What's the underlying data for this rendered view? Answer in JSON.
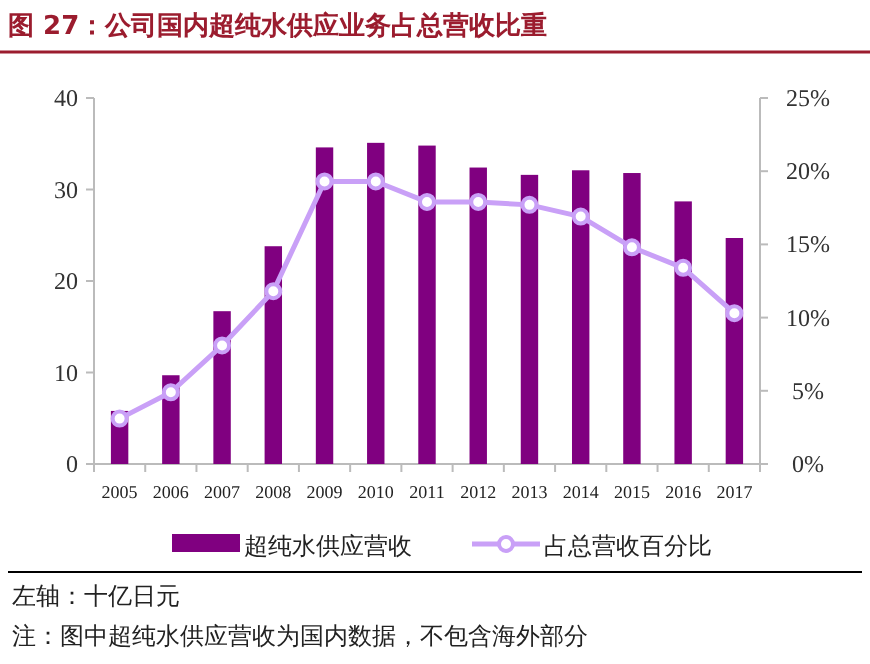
{
  "chart_data": {
    "type": "bar",
    "title": "图 27：公司国内超纯水供应业务占总营收比重",
    "categories": [
      "2005",
      "2006",
      "2007",
      "2008",
      "2009",
      "2010",
      "2011",
      "2012",
      "2013",
      "2014",
      "2015",
      "2016",
      "2017"
    ],
    "series": [
      {
        "name": "超纯水供应营收",
        "color": "#800080",
        "values": [
          5.8,
          9.7,
          16.7,
          23.8,
          34.6,
          35.1,
          34.8,
          32.4,
          31.6,
          32.1,
          31.8,
          28.7,
          24.7
        ]
      },
      {
        "name": "占总营收百分比",
        "type": "line",
        "axis": "y2",
        "color": "#c9a0f7",
        "marker": "circle",
        "values": [
          3.1,
          4.9,
          8.1,
          11.8,
          19.3,
          19.3,
          17.9,
          17.9,
          17.7,
          16.9,
          14.8,
          13.4,
          10.3
        ]
      }
    ],
    "ylim": [
      0,
      40
    ],
    "yticks": [
      0,
      10,
      20,
      30,
      40
    ],
    "y2lim": [
      0,
      25
    ],
    "y2ticks": [
      {
        "value": 0,
        "label": "0%"
      },
      {
        "value": 5,
        "label": "5%"
      },
      {
        "value": 10,
        "label": "10%"
      },
      {
        "value": 15,
        "label": "15%"
      },
      {
        "value": 20,
        "label": "20%"
      },
      {
        "value": 25,
        "label": "25%"
      }
    ],
    "grid": false,
    "legend": "bottom",
    "annotations": [
      "左轴：十亿日元",
      "注：图中超纯水供应营收为国内数据，不包含海外部分"
    ]
  }
}
